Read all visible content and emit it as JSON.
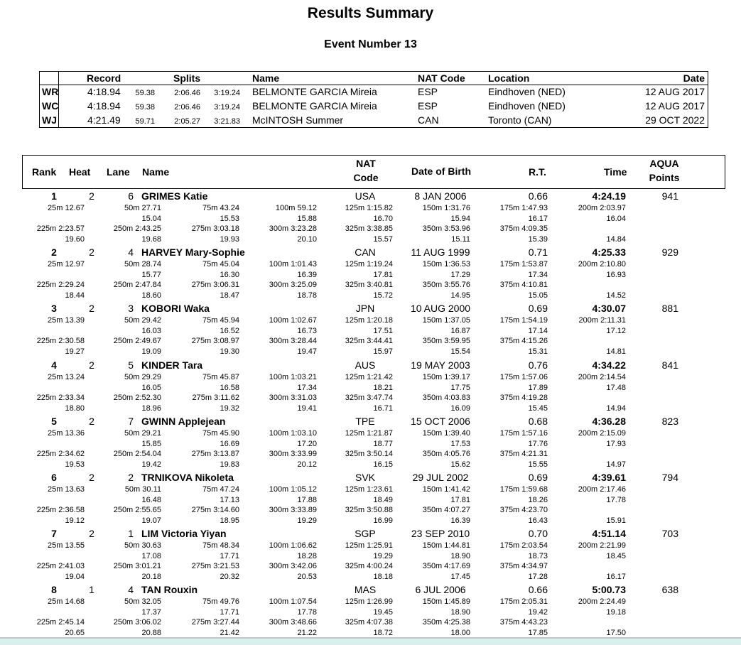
{
  "title": "Results Summary",
  "event": "Event Number 13",
  "records": {
    "headers": {
      "record": "Record",
      "splits": "Splits",
      "name": "Name",
      "nat": "NAT Code",
      "location": "Location",
      "date": "Date"
    },
    "rows": [
      {
        "code": "WR",
        "time": "4:18.94",
        "s1": "59.38",
        "s2": "2:06.46",
        "s3": "3:19.24",
        "name": "BELMONTE GARCIA Mireia",
        "nat": "ESP",
        "location": "Eindhoven (NED)",
        "date": "12 AUG 2017"
      },
      {
        "code": "WC",
        "time": "4:18.94",
        "s1": "59.38",
        "s2": "2:06.46",
        "s3": "3:19.24",
        "name": "BELMONTE GARCIA Mireia",
        "nat": "ESP",
        "location": "Eindhoven (NED)",
        "date": "12 AUG 2017"
      },
      {
        "code": "WJ",
        "time": "4:21.49",
        "s1": "59.71",
        "s2": "2:05.27",
        "s3": "3:21.83",
        "name": "McINTOSH Summer",
        "nat": "CAN",
        "location": "Toronto (CAN)",
        "date": "29 OCT 2022"
      }
    ]
  },
  "results": {
    "headers": {
      "rank": "Rank",
      "heat": "Heat",
      "lane": "Lane",
      "name": "Name",
      "nat1": "NAT",
      "nat2": "Code",
      "dob": "Date of Birth",
      "rt": "R.T.",
      "time": "Time",
      "pts1": "AQUA",
      "pts2": "Points"
    },
    "dists": [
      "25m",
      "50m",
      "75m",
      "100m",
      "125m",
      "150m",
      "175m",
      "200m",
      "225m",
      "250m",
      "275m",
      "300m",
      "325m",
      "350m",
      "375m"
    ],
    "rows": [
      {
        "rank": "1",
        "heat": "2",
        "lane": "6",
        "name": "GRIMES Katie",
        "nat": "USA",
        "dob": "8 JAN 2006",
        "rt": "0.66",
        "time": "4:24.19",
        "points": "941",
        "cum": [
          "12.67",
          "27.71",
          "43.24",
          "59.12",
          "1:15.82",
          "1:31.76",
          "1:47.93",
          "2:03.97",
          "2:23.57",
          "2:43.25",
          "3:03.18",
          "3:23.28",
          "3:38.85",
          "3:53.96",
          "4:09.35"
        ],
        "laps": [
          "",
          "15.04",
          "15.53",
          "15.88",
          "16.70",
          "15.94",
          "16.17",
          "16.04",
          "19.60",
          "19.68",
          "19.93",
          "20.10",
          "15.57",
          "15.11",
          "15.39",
          "14.84"
        ]
      },
      {
        "rank": "2",
        "heat": "2",
        "lane": "4",
        "name": "HARVEY Mary-Sophie",
        "nat": "CAN",
        "dob": "11 AUG 1999",
        "rt": "0.71",
        "time": "4:25.33",
        "points": "929",
        "cum": [
          "12.97",
          "28.74",
          "45.04",
          "1:01.43",
          "1:19.24",
          "1:36.53",
          "1:53.87",
          "2:10.80",
          "2:29.24",
          "2:47.84",
          "3:06.31",
          "3:25.09",
          "3:40.81",
          "3:55.76",
          "4:10.81"
        ],
        "laps": [
          "",
          "15.77",
          "16.30",
          "16.39",
          "17.81",
          "17.29",
          "17.34",
          "16.93",
          "18.44",
          "18.60",
          "18.47",
          "18.78",
          "15.72",
          "14.95",
          "15.05",
          "14.52"
        ]
      },
      {
        "rank": "3",
        "heat": "2",
        "lane": "3",
        "name": "KOBORI Waka",
        "nat": "JPN",
        "dob": "10 AUG 2000",
        "rt": "0.69",
        "time": "4:30.07",
        "points": "881",
        "cum": [
          "13.39",
          "29.42",
          "45.94",
          "1:02.67",
          "1:20.18",
          "1:37.05",
          "1:54.19",
          "2:11.31",
          "2:30.58",
          "2:49.67",
          "3:08.97",
          "3:28.44",
          "3:44.41",
          "3:59.95",
          "4:15.26"
        ],
        "laps": [
          "",
          "16.03",
          "16.52",
          "16.73",
          "17.51",
          "16.87",
          "17.14",
          "17.12",
          "19.27",
          "19.09",
          "19.30",
          "19.47",
          "15.97",
          "15.54",
          "15.31",
          "14.81"
        ]
      },
      {
        "rank": "4",
        "heat": "2",
        "lane": "5",
        "name": "KINDER Tara",
        "nat": "AUS",
        "dob": "19 MAY 2003",
        "rt": "0.76",
        "time": "4:34.22",
        "points": "841",
        "cum": [
          "13.24",
          "29.29",
          "45.87",
          "1:03.21",
          "1:21.42",
          "1:39.17",
          "1:57.06",
          "2:14.54",
          "2:33.34",
          "2:52.30",
          "3:11.62",
          "3:31.03",
          "3:47.74",
          "4:03.83",
          "4:19.28"
        ],
        "laps": [
          "",
          "16.05",
          "16.58",
          "17.34",
          "18.21",
          "17.75",
          "17.89",
          "17.48",
          "18.80",
          "18.96",
          "19.32",
          "19.41",
          "16.71",
          "16.09",
          "15.45",
          "14.94"
        ]
      },
      {
        "rank": "5",
        "heat": "2",
        "lane": "7",
        "name": "GWINN Applejean",
        "nat": "TPE",
        "dob": "15 OCT 2006",
        "rt": "0.68",
        "time": "4:36.28",
        "points": "823",
        "cum": [
          "13.36",
          "29.21",
          "45.90",
          "1:03.10",
          "1:21.87",
          "1:39.40",
          "1:57.16",
          "2:15.09",
          "2:34.62",
          "2:54.04",
          "3:13.87",
          "3:33.99",
          "3:50.14",
          "4:05.76",
          "4:21.31"
        ],
        "laps": [
          "",
          "15.85",
          "16.69",
          "17.20",
          "18.77",
          "17.53",
          "17.76",
          "17.93",
          "19.53",
          "19.42",
          "19.83",
          "20.12",
          "16.15",
          "15.62",
          "15.55",
          "14.97"
        ]
      },
      {
        "rank": "6",
        "heat": "2",
        "lane": "2",
        "name": "TRNIKOVA Nikoleta",
        "nat": "SVK",
        "dob": "29 JUL 2002",
        "rt": "0.69",
        "time": "4:39.61",
        "points": "794",
        "cum": [
          "13.63",
          "30.11",
          "47.24",
          "1:05.12",
          "1:23.61",
          "1:41.42",
          "1:59.68",
          "2:17.46",
          "2:36.58",
          "2:55.65",
          "3:14.60",
          "3:33.89",
          "3:50.88",
          "4:07.27",
          "4:23.70"
        ],
        "laps": [
          "",
          "16.48",
          "17.13",
          "17.88",
          "18.49",
          "17.81",
          "18.26",
          "17.78",
          "19.12",
          "19.07",
          "18.95",
          "19.29",
          "16.99",
          "16.39",
          "16.43",
          "15.91"
        ]
      },
      {
        "rank": "7",
        "heat": "2",
        "lane": "1",
        "name": "LIM Victoria Yiyan",
        "nat": "SGP",
        "dob": "23 SEP 2010",
        "rt": "0.70",
        "time": "4:51.14",
        "points": "703",
        "cum": [
          "13.55",
          "30.63",
          "48.34",
          "1:06.62",
          "1:25.91",
          "1:44.81",
          "2:03.54",
          "2:21.99",
          "2:41.03",
          "3:01.21",
          "3:21.53",
          "3:42.06",
          "4:00.24",
          "4:17.69",
          "4:34.97"
        ],
        "laps": [
          "",
          "17.08",
          "17.71",
          "18.28",
          "19.29",
          "18.90",
          "18.73",
          "18.45",
          "19.04",
          "20.18",
          "20.32",
          "20.53",
          "18.18",
          "17.45",
          "17.28",
          "16.17"
        ]
      },
      {
        "rank": "8",
        "heat": "1",
        "lane": "4",
        "name": "TAN Rouxin",
        "nat": "MAS",
        "dob": "6 JUL 2006",
        "rt": "0.66",
        "time": "5:00.73",
        "points": "638",
        "cum": [
          "14.68",
          "32.05",
          "49.76",
          "1:07.54",
          "1:26.99",
          "1:45.89",
          "2:05.31",
          "2:24.49",
          "2:45.14",
          "3:06.02",
          "3:27.44",
          "3:48.66",
          "4:07.38",
          "4:25.38",
          "4:43.23"
        ],
        "laps": [
          "",
          "17.37",
          "17.71",
          "17.78",
          "19.45",
          "18.90",
          "19.42",
          "19.18",
          "20.65",
          "20.88",
          "21.42",
          "21.22",
          "18.72",
          "18.00",
          "17.85",
          "17.50"
        ]
      }
    ]
  }
}
